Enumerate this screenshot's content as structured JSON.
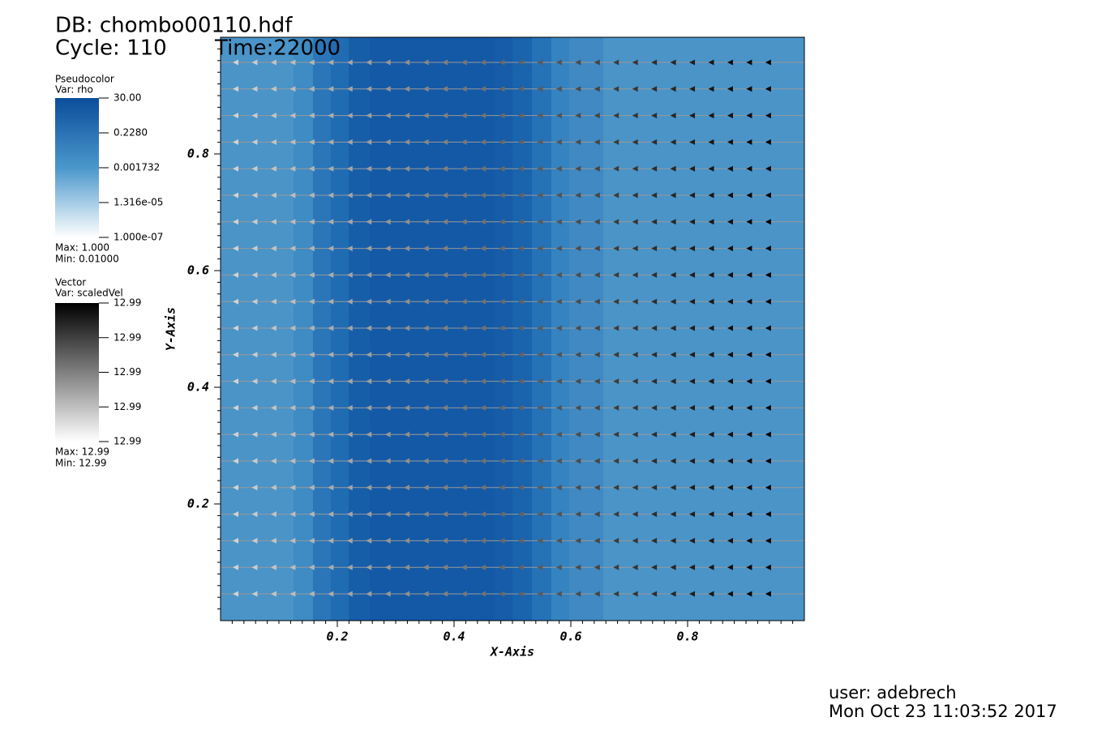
{
  "header": {
    "db": "DB: chombo00110.hdf",
    "cycle": "Cycle: 110",
    "time": "Time:22000"
  },
  "pseudocolor_legend": {
    "title": "Pseudocolor",
    "var": "Var: rho",
    "ticks": [
      "30.00",
      "0.2280",
      "0.001732",
      "1.316e-05",
      "1.000e-07"
    ],
    "max": "Max:  1.000",
    "min": "Min:  0.01000"
  },
  "vector_legend": {
    "title": "Vector",
    "var": "Var: scaledVel",
    "ticks": [
      "12.99",
      "12.99",
      "12.99",
      "12.99",
      "12.99"
    ],
    "max": "Max:  12.99",
    "min": "Min:  12.99"
  },
  "plot": {
    "xlabel": "X-Axis",
    "ylabel": "Y-Axis",
    "xlim": [
      0,
      1
    ],
    "ylim": [
      0,
      1
    ],
    "xticks": [
      0.2,
      0.4,
      0.6,
      0.8
    ],
    "yticks": [
      0.2,
      0.4,
      0.6,
      0.8
    ]
  },
  "footer": {
    "user": "user: adebrech",
    "date": "Mon Oct 23 11:03:52 2017"
  }
}
